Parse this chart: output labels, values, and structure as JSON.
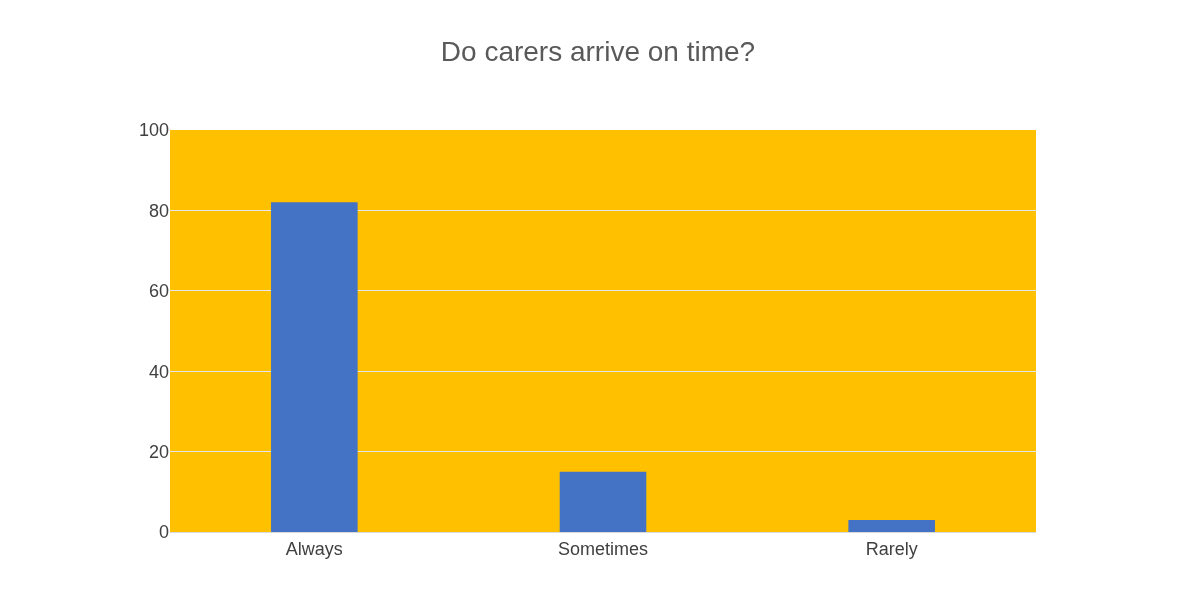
{
  "chart_data": {
    "type": "bar",
    "title": "Do carers arrive on time?",
    "categories": [
      "Always",
      "Sometimes",
      "Rarely"
    ],
    "values": [
      82,
      15,
      3
    ],
    "color": "#4472c4",
    "ylim": [
      0,
      100
    ],
    "yticks": [
      0,
      20,
      40,
      60,
      80,
      100
    ],
    "grid": "y",
    "legend": false
  }
}
